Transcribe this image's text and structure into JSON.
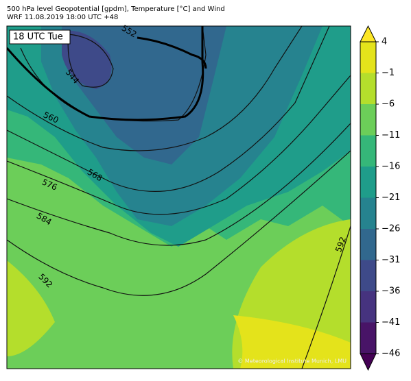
{
  "header": {
    "title": "500 hPa level Geopotential [gpdm], Temperature [°C] and Wind",
    "subtitle": "WRF 11.08.2019 18:00 UTC +48"
  },
  "map": {
    "time_label": "18 UTC Tue",
    "credit": "© Meteorological Institute Munich, LMU",
    "contour_labels": [
      "552",
      "544",
      "560",
      "568",
      "576",
      "584",
      "592",
      "592"
    ]
  },
  "colorbar": {
    "ticks": [
      4,
      {
        "value": -1,
        "label": "−1"
      },
      {
        "value": -6,
        "label": "−6"
      },
      {
        "value": -11,
        "label": "−11"
      },
      {
        "value": -16,
        "label": "−16"
      },
      {
        "value": -21,
        "label": "−21"
      },
      {
        "value": -26,
        "label": "−26"
      },
      {
        "value": -31,
        "label": "−31"
      },
      {
        "value": -36,
        "label": "−36"
      },
      {
        "value": -41,
        "label": "−41"
      },
      {
        "value": -46,
        "label": "−46"
      }
    ],
    "colors": [
      "#e4e31b",
      "#b4de2c",
      "#6cce59",
      "#35b779",
      "#1f9d8a",
      "#26838f",
      "#31688e",
      "#3e4a89",
      "#46337f",
      "#481467"
    ],
    "over_color": "#fde725",
    "under_color": "#440154"
  }
}
